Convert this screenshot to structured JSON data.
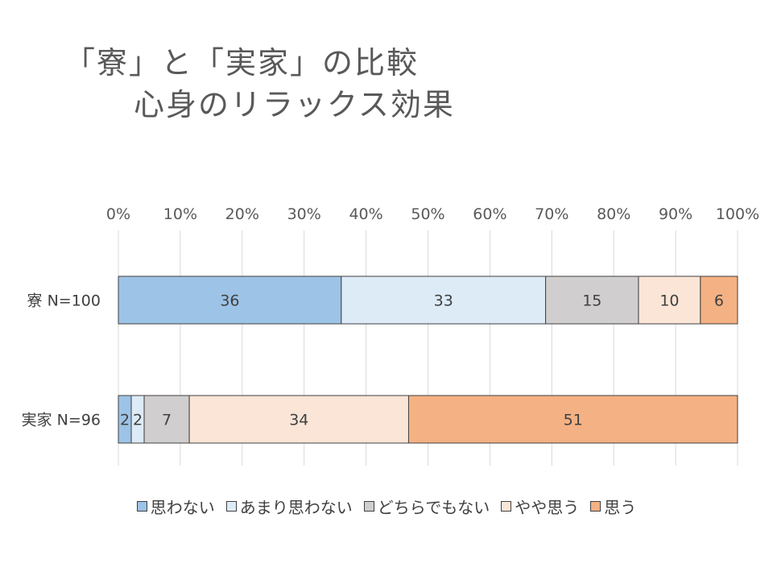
{
  "title": {
    "line1": "「寮」と「実家」の比較",
    "line2": "心身のリラックス効果"
  },
  "chart_data": {
    "type": "bar",
    "orientation": "horizontal",
    "stacked": "percent",
    "categories": [
      "寮 N=100",
      "実家 N=96"
    ],
    "series": [
      {
        "name": "思わない",
        "values": [
          36,
          2
        ],
        "color": "#9dc3e6"
      },
      {
        "name": "あまり思わない",
        "values": [
          33,
          2
        ],
        "color": "#ddebf7"
      },
      {
        "name": "どちらでもない",
        "values": [
          15,
          7
        ],
        "color": "#d0cece"
      },
      {
        "name": "やや思う",
        "values": [
          10,
          34
        ],
        "color": "#fbe5d6"
      },
      {
        "name": "思う",
        "values": [
          6,
          51
        ],
        "color": "#f4b183"
      }
    ],
    "x_ticks": [
      "0%",
      "10%",
      "20%",
      "30%",
      "40%",
      "50%",
      "60%",
      "70%",
      "80%",
      "90%",
      "100%"
    ],
    "xlim": [
      0,
      100
    ],
    "x_axis_position": "top",
    "grid": true,
    "legend_position": "bottom"
  }
}
